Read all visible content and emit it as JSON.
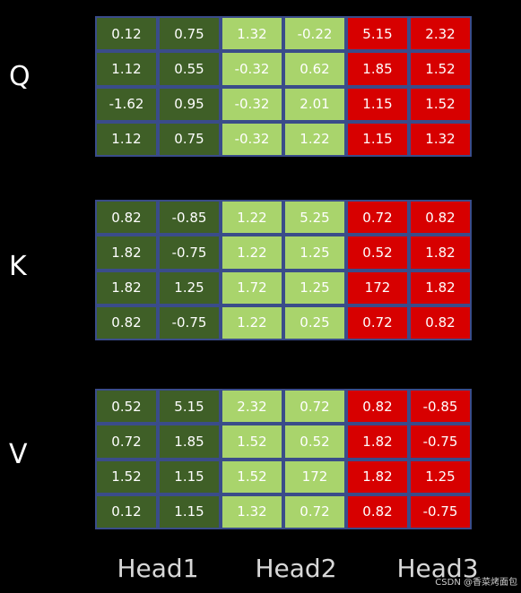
{
  "matrices": [
    {
      "label": "Q",
      "rows": [
        [
          "0.12",
          "0.75",
          "1.32",
          "-0.22",
          "5.15",
          "2.32"
        ],
        [
          "1.12",
          "0.55",
          "-0.32",
          "0.62",
          "1.85",
          "1.52"
        ],
        [
          "-1.62",
          "0.95",
          "-0.32",
          "2.01",
          "1.15",
          "1.52"
        ],
        [
          "1.12",
          "0.75",
          "-0.32",
          "1.22",
          "1.15",
          "1.32"
        ]
      ]
    },
    {
      "label": "K",
      "rows": [
        [
          "0.82",
          "-0.85",
          "1.22",
          "5.25",
          "0.72",
          "0.82"
        ],
        [
          "1.82",
          "-0.75",
          "1.22",
          "1.25",
          "0.52",
          "1.82"
        ],
        [
          "1.82",
          "1.25",
          "1.72",
          "1.25",
          "172",
          "1.82"
        ],
        [
          "0.82",
          "-0.75",
          "1.22",
          "0.25",
          "0.72",
          "0.82"
        ]
      ]
    },
    {
      "label": "V",
      "rows": [
        [
          "0.52",
          "5.15",
          "2.32",
          "0.72",
          "0.82",
          "-0.85"
        ],
        [
          "0.72",
          "1.85",
          "1.52",
          "0.52",
          "1.82",
          "-0.75"
        ],
        [
          "1.52",
          "1.15",
          "1.52",
          "172",
          "1.82",
          "1.25"
        ],
        [
          "0.12",
          "1.15",
          "1.32",
          "0.72",
          "0.82",
          "-0.75"
        ]
      ]
    }
  ],
  "heads": [
    "Head1",
    "Head2",
    "Head3"
  ],
  "watermark": "CSDN @香菜烤面包",
  "colors": {
    "background": "#000000",
    "head1": "#3f5f27",
    "head2": "#a9d46c",
    "head3": "#d70000",
    "cell_border": "#3a4c8a"
  }
}
